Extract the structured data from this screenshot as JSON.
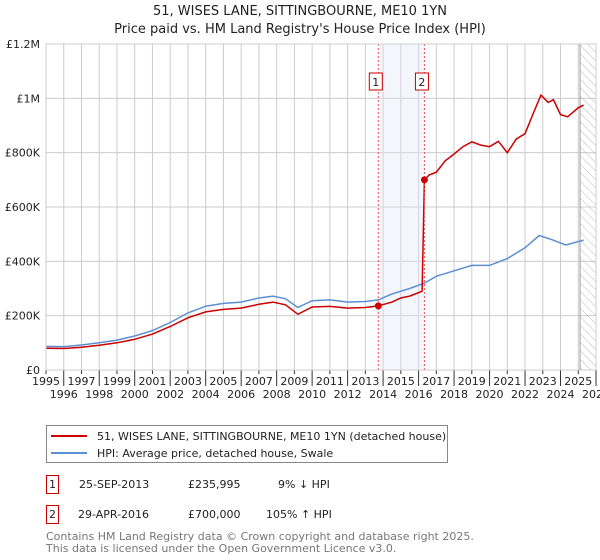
{
  "title": "51, WISES LANE, SITTINGBOURNE, ME10 1YN",
  "subtitle": "Price paid vs. HM Land Registry's House Price Index (HPI)",
  "chart_data": {
    "type": "line",
    "title": "51, WISES LANE, SITTINGBOURNE, ME10 1YN — Price paid vs. HM Land Registry's House Price Index (HPI)",
    "xlim": [
      1995,
      2026
    ],
    "ylim": [
      0,
      1200000
    ],
    "x_ticks": [
      "1995",
      "1996",
      "1997",
      "1998",
      "1999",
      "2000",
      "2001",
      "2002",
      "2003",
      "2004",
      "2005",
      "2006",
      "2007",
      "2008",
      "2009",
      "2010",
      "2011",
      "2012",
      "2013",
      "2014",
      "2015",
      "2016",
      "2017",
      "2018",
      "2019",
      "2020",
      "2021",
      "2022",
      "2023",
      "2024",
      "2025",
      "2026"
    ],
    "y_ticks": [
      {
        "v": 0,
        "label": "£0"
      },
      {
        "v": 200000,
        "label": "£200K"
      },
      {
        "v": 400000,
        "label": "£400K"
      },
      {
        "v": 600000,
        "label": "£600K"
      },
      {
        "v": 800000,
        "label": "£800K"
      },
      {
        "v": 1000000,
        "label": "£1M"
      },
      {
        "v": 1200000,
        "label": "£1.2M"
      }
    ],
    "grid": true,
    "shaded_range": [
      2013.73,
      2016.33
    ],
    "forecast_hatch_from": 2025.1,
    "series": [
      {
        "name": "51, WISES LANE, SITTINGBOURNE, ME10 1YN (detached house)",
        "color": "#cc0000",
        "points": [
          [
            1995,
            80000
          ],
          [
            1996,
            79000
          ],
          [
            1997,
            84000
          ],
          [
            1998,
            91000
          ],
          [
            1999,
            100000
          ],
          [
            2000,
            113000
          ],
          [
            2001,
            132000
          ],
          [
            2002,
            160000
          ],
          [
            2003,
            192000
          ],
          [
            2004,
            214000
          ],
          [
            2005,
            223000
          ],
          [
            2006,
            228000
          ],
          [
            2007,
            242000
          ],
          [
            2007.8,
            250000
          ],
          [
            2008.5,
            240000
          ],
          [
            2009.2,
            205000
          ],
          [
            2010,
            232000
          ],
          [
            2011,
            234000
          ],
          [
            2012,
            228000
          ],
          [
            2013,
            230000
          ],
          [
            2013.73,
            235995
          ],
          [
            2014.5,
            250000
          ],
          [
            2015,
            265000
          ],
          [
            2015.5,
            272000
          ],
          [
            2016.2,
            290000
          ],
          [
            2016.33,
            700000
          ],
          [
            2016.6,
            718000
          ],
          [
            2017,
            728000
          ],
          [
            2017.5,
            770000
          ],
          [
            2018,
            795000
          ],
          [
            2018.5,
            822000
          ],
          [
            2019,
            840000
          ],
          [
            2019.5,
            828000
          ],
          [
            2020,
            822000
          ],
          [
            2020.5,
            842000
          ],
          [
            2021,
            800000
          ],
          [
            2021.5,
            850000
          ],
          [
            2022,
            870000
          ],
          [
            2022.5,
            950000
          ],
          [
            2022.9,
            1012000
          ],
          [
            2023.3,
            985000
          ],
          [
            2023.6,
            995000
          ],
          [
            2024,
            940000
          ],
          [
            2024.4,
            932000
          ],
          [
            2025,
            965000
          ],
          [
            2025.3,
            975000
          ]
        ]
      },
      {
        "name": "HPI: Average price, detached house, Swale",
        "color": "#5b8fd4",
        "points": [
          [
            1995,
            87000
          ],
          [
            1996,
            86000
          ],
          [
            1997,
            92000
          ],
          [
            1998,
            100000
          ],
          [
            1999,
            110000
          ],
          [
            2000,
            125000
          ],
          [
            2001,
            145000
          ],
          [
            2002,
            175000
          ],
          [
            2003,
            210000
          ],
          [
            2004,
            235000
          ],
          [
            2005,
            245000
          ],
          [
            2006,
            250000
          ],
          [
            2007,
            265000
          ],
          [
            2007.8,
            272000
          ],
          [
            2008.5,
            262000
          ],
          [
            2009.2,
            230000
          ],
          [
            2010,
            255000
          ],
          [
            2011,
            258000
          ],
          [
            2012,
            250000
          ],
          [
            2013,
            252000
          ],
          [
            2013.73,
            258000
          ],
          [
            2014.5,
            280000
          ],
          [
            2015.5,
            300000
          ],
          [
            2016.33,
            320000
          ],
          [
            2017,
            345000
          ],
          [
            2018,
            365000
          ],
          [
            2019,
            385000
          ],
          [
            2020,
            385000
          ],
          [
            2021,
            410000
          ],
          [
            2022,
            450000
          ],
          [
            2022.8,
            495000
          ],
          [
            2023.5,
            480000
          ],
          [
            2024.3,
            460000
          ],
          [
            2025.3,
            478000
          ]
        ]
      }
    ],
    "sales": [
      {
        "label": "1",
        "x": 2013.73,
        "price": 235995,
        "date": "25-SEP-2013",
        "price_text": "£235,995",
        "hpi_text": "9% ↓ HPI"
      },
      {
        "label": "2",
        "x": 2016.33,
        "price": 700000,
        "date": "29-APR-2016",
        "price_text": "£700,000",
        "hpi_text": "105% ↑ HPI"
      }
    ]
  },
  "legend": {
    "red_label": "51, WISES LANE, SITTINGBOURNE, ME10 1YN (detached house)",
    "blue_label": "HPI: Average price, detached house, Swale"
  },
  "footer": {
    "line1": "Contains HM Land Registry data © Crown copyright and database right 2025.",
    "line2": "This data is licensed under the Open Government Licence v3.0."
  }
}
